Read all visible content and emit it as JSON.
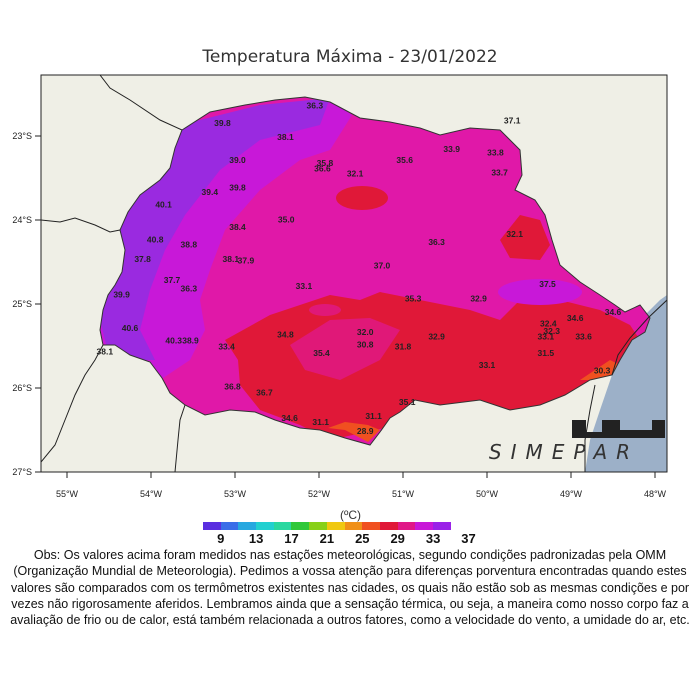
{
  "title": "Temperatura Máxima - 23/01/2022",
  "logo_text": "SIMEPAR",
  "axes": {
    "lat_labels": [
      "23°S",
      "24°S",
      "25°S",
      "26°S",
      "27°S"
    ],
    "lon_labels": [
      "55°W",
      "54°W",
      "53°W",
      "52°W",
      "51°W",
      "50°W",
      "49°W",
      "48°W"
    ]
  },
  "colors": {
    "land_background": "#efefe6",
    "ocean": "#9cb0c8",
    "red_zone": "#e01838",
    "magenta_zone": "#e018a8",
    "violet_zone": "#9a2ae0"
  },
  "colorbar": {
    "unit": "(ºC)",
    "colors": [
      "#5a2ee0",
      "#3a6ee8",
      "#27a8e0",
      "#22d0d0",
      "#2ad8a0",
      "#30c83a",
      "#88d018",
      "#f0c810",
      "#f09018",
      "#f05020",
      "#e01838",
      "#e01888",
      "#c818d8",
      "#9a22e8"
    ],
    "labels": [
      "9",
      "13",
      "17",
      "21",
      "25",
      "29",
      "33",
      "37"
    ]
  },
  "stations": [
    {
      "v": "39.8",
      "lon": -53.15,
      "lat": -22.88
    },
    {
      "v": "38.1",
      "lon": -52.4,
      "lat": -23.05
    },
    {
      "v": "39.0",
      "lon": -52.97,
      "lat": -23.32
    },
    {
      "v": "35.8",
      "lon": -51.93,
      "lat": -23.36
    },
    {
      "v": "36.6",
      "lon": -51.96,
      "lat": -23.42
    },
    {
      "v": "32.1",
      "lon": -51.57,
      "lat": -23.48
    },
    {
      "v": "35.6",
      "lon": -50.98,
      "lat": -23.32
    },
    {
      "v": "33.9",
      "lon": -50.42,
      "lat": -23.19
    },
    {
      "v": "33.8",
      "lon": -49.9,
      "lat": -23.23
    },
    {
      "v": "33.7",
      "lon": -49.85,
      "lat": -23.47
    },
    {
      "v": "37.1",
      "lon": -49.7,
      "lat": -22.85
    },
    {
      "v": "40.1",
      "lon": -53.85,
      "lat": -23.85
    },
    {
      "v": "39.4",
      "lon": -53.3,
      "lat": -23.7
    },
    {
      "v": "39.8",
      "lon": -52.97,
      "lat": -23.65
    },
    {
      "v": "38.4",
      "lon": -52.97,
      "lat": -24.12
    },
    {
      "v": "35.0",
      "lon": -52.39,
      "lat": -24.03
    },
    {
      "v": "36.3",
      "lon": -50.6,
      "lat": -24.3
    },
    {
      "v": "32.1",
      "lon": -49.67,
      "lat": -24.2
    },
    {
      "v": "40.8",
      "lon": -53.95,
      "lat": -24.27
    },
    {
      "v": "38.8",
      "lon": -53.55,
      "lat": -24.33
    },
    {
      "v": "37.8",
      "lon": -54.1,
      "lat": -24.5
    },
    {
      "v": "38.1",
      "lon": -53.05,
      "lat": -24.5
    },
    {
      "v": "37.9",
      "lon": -52.87,
      "lat": -24.52
    },
    {
      "v": "37.0",
      "lon": -51.25,
      "lat": -24.58
    },
    {
      "v": "37.7",
      "lon": -53.75,
      "lat": -24.75
    },
    {
      "v": "36.3",
      "lon": -53.55,
      "lat": -24.85
    },
    {
      "v": "39.9",
      "lon": -54.35,
      "lat": -24.92
    },
    {
      "v": "33.1",
      "lon": -52.18,
      "lat": -24.82
    },
    {
      "v": "35.3",
      "lon": -50.88,
      "lat": -24.97
    },
    {
      "v": "32.9",
      "lon": -50.1,
      "lat": -24.97
    },
    {
      "v": "37.5",
      "lon": -49.28,
      "lat": -24.8
    },
    {
      "v": "40.6",
      "lon": -54.25,
      "lat": -25.32
    },
    {
      "v": "34.6",
      "lon": -48.95,
      "lat": -25.2
    },
    {
      "v": "34.6",
      "lon": -48.5,
      "lat": -25.13
    },
    {
      "v": "32.4",
      "lon": -49.27,
      "lat": -25.27
    },
    {
      "v": "32.3",
      "lon": -49.23,
      "lat": -25.36
    },
    {
      "v": "33.1",
      "lon": -49.3,
      "lat": -25.42
    },
    {
      "v": "33.6",
      "lon": -48.85,
      "lat": -25.42
    },
    {
      "v": "32.0",
      "lon": -51.45,
      "lat": -25.37
    },
    {
      "v": "34.8",
      "lon": -52.4,
      "lat": -25.4
    },
    {
      "v": "32.9",
      "lon": -50.6,
      "lat": -25.42
    },
    {
      "v": "40.3",
      "lon": -53.73,
      "lat": -25.47
    },
    {
      "v": "38.9",
      "lon": -53.53,
      "lat": -25.47
    },
    {
      "v": "33.4",
      "lon": -53.1,
      "lat": -25.54
    },
    {
      "v": "30.8",
      "lon": -51.45,
      "lat": -25.52
    },
    {
      "v": "31.8",
      "lon": -51.0,
      "lat": -25.54
    },
    {
      "v": "35.4",
      "lon": -51.97,
      "lat": -25.62
    },
    {
      "v": "31.5",
      "lon": -49.3,
      "lat": -25.62
    },
    {
      "v": "33.1",
      "lon": -50.0,
      "lat": -25.76
    },
    {
      "v": "30.3",
      "lon": -48.63,
      "lat": -25.83
    },
    {
      "v": "36.8",
      "lon": -53.03,
      "lat": -26.02
    },
    {
      "v": "36.7",
      "lon": -52.65,
      "lat": -26.09
    },
    {
      "v": "35.1",
      "lon": -50.95,
      "lat": -26.2
    },
    {
      "v": "34.6",
      "lon": -52.35,
      "lat": -26.39
    },
    {
      "v": "31.1",
      "lon": -51.98,
      "lat": -26.44
    },
    {
      "v": "31.1",
      "lon": -51.35,
      "lat": -26.37
    },
    {
      "v": "28.9",
      "lon": -51.45,
      "lat": -26.55
    },
    {
      "v": "38.1",
      "lon": -54.55,
      "lat": -25.6
    },
    {
      "v": "36.3",
      "lon": -52.05,
      "lat": -22.67
    }
  ],
  "note": "Obs: Os valores acima foram medidos nas estações meteorológicas, segundo condições padronizadas pela OMM (Organização Mundial de Meteorologia). Pedimos a vossa atenção para diferenças porventura encontradas quando estes valores são comparados com os termômetros existentes nas cidades, os quais não estão sob as mesmas condições e por vezes não rigorosamente aferidos. Lembramos ainda que a sensação térmica, ou seja, a maneira como nosso corpo faz a avaliação de frio ou de calor, está também relacionada a outros fatores, como a velocidade do vento, a umidade do ar, etc."
}
